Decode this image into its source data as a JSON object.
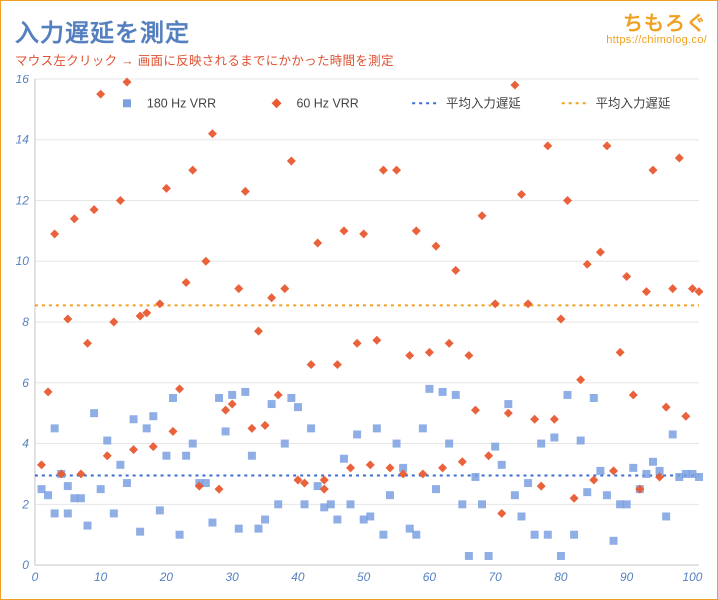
{
  "header": {
    "title": "入力遅延を測定",
    "subtitle": "マウス左クリック → 画面に反映されるまでにかかった時間を測定"
  },
  "brand": {
    "name": "ちもろぐ",
    "url": "https://chimolog.co/"
  },
  "chart": {
    "type": "scatter",
    "background_color": "#ffffff",
    "grid_color": "#e6e6e6",
    "axis_color": "#cfcfcf",
    "tick_label_color": "#5580c0",
    "tick_fontsize": 12,
    "xlim": [
      0,
      101
    ],
    "ylim": [
      0,
      16
    ],
    "xticks": [
      0,
      10,
      20,
      30,
      40,
      50,
      60,
      70,
      80,
      90,
      100
    ],
    "yticks": [
      0,
      2,
      4,
      6,
      8,
      10,
      12,
      14,
      16
    ],
    "legend": {
      "y": 15.2,
      "items": [
        {
          "key": "s180",
          "label": "180 Hz VRR",
          "marker": "square",
          "color": "#7aa0e0"
        },
        {
          "key": "s60",
          "label": "60 Hz VRR",
          "marker": "diamond",
          "color": "#e85a30"
        },
        {
          "key": "avg180",
          "label": "平均入力遅延",
          "marker": "dotted-line",
          "color": "#3a6cd0"
        },
        {
          "key": "avg60",
          "label": "平均入力遅延",
          "marker": "dotted-line",
          "color": "#f0a020"
        }
      ]
    },
    "reference_lines": [
      {
        "key": "avg60",
        "y": 8.55,
        "color": "#f0a020",
        "dash": "3,4",
        "width": 2
      },
      {
        "key": "avg180",
        "y": 2.95,
        "color": "#3a6cd0",
        "dash": "3,4",
        "width": 2
      }
    ],
    "series": [
      {
        "key": "s180",
        "marker": "square",
        "color": "#7aa0e0",
        "fill_opacity": 0.85,
        "size": 8,
        "data": [
          [
            1,
            2.5
          ],
          [
            2,
            2.3
          ],
          [
            3,
            4.5
          ],
          [
            3,
            1.7
          ],
          [
            4,
            3.0
          ],
          [
            5,
            2.6
          ],
          [
            5,
            1.7
          ],
          [
            6,
            2.2
          ],
          [
            7,
            2.2
          ],
          [
            8,
            1.3
          ],
          [
            9,
            5.0
          ],
          [
            10,
            2.5
          ],
          [
            11,
            4.1
          ],
          [
            12,
            1.7
          ],
          [
            13,
            3.3
          ],
          [
            14,
            2.7
          ],
          [
            15,
            4.8
          ],
          [
            16,
            1.1
          ],
          [
            17,
            4.5
          ],
          [
            18,
            4.9
          ],
          [
            19,
            1.8
          ],
          [
            20,
            3.6
          ],
          [
            21,
            5.5
          ],
          [
            22,
            1.0
          ],
          [
            23,
            3.6
          ],
          [
            24,
            4.0
          ],
          [
            25,
            2.7
          ],
          [
            26,
            2.7
          ],
          [
            27,
            1.4
          ],
          [
            28,
            5.5
          ],
          [
            29,
            4.4
          ],
          [
            30,
            5.6
          ],
          [
            31,
            1.2
          ],
          [
            32,
            5.7
          ],
          [
            33,
            3.6
          ],
          [
            34,
            1.2
          ],
          [
            35,
            1.5
          ],
          [
            36,
            5.3
          ],
          [
            37,
            2.0
          ],
          [
            38,
            4.0
          ],
          [
            39,
            5.5
          ],
          [
            40,
            5.2
          ],
          [
            41,
            2.0
          ],
          [
            42,
            4.5
          ],
          [
            43,
            2.6
          ],
          [
            44,
            1.9
          ],
          [
            45,
            2.0
          ],
          [
            46,
            1.5
          ],
          [
            47,
            3.5
          ],
          [
            48,
            2.0
          ],
          [
            49,
            4.3
          ],
          [
            50,
            1.5
          ],
          [
            51,
            1.6
          ],
          [
            52,
            4.5
          ],
          [
            53,
            1.0
          ],
          [
            54,
            2.3
          ],
          [
            55,
            4.0
          ],
          [
            56,
            3.2
          ],
          [
            57,
            1.2
          ],
          [
            58,
            1.0
          ],
          [
            59,
            4.5
          ],
          [
            60,
            5.8
          ],
          [
            61,
            2.5
          ],
          [
            62,
            5.7
          ],
          [
            63,
            4.0
          ],
          [
            64,
            5.6
          ],
          [
            65,
            2.0
          ],
          [
            66,
            0.3
          ],
          [
            67,
            2.9
          ],
          [
            68,
            2.0
          ],
          [
            69,
            0.3
          ],
          [
            70,
            3.9
          ],
          [
            71,
            3.3
          ],
          [
            72,
            5.3
          ],
          [
            73,
            2.3
          ],
          [
            74,
            1.6
          ],
          [
            75,
            2.7
          ],
          [
            76,
            1.0
          ],
          [
            77,
            4.0
          ],
          [
            78,
            1.0
          ],
          [
            79,
            4.2
          ],
          [
            80,
            0.3
          ],
          [
            81,
            5.6
          ],
          [
            82,
            1.0
          ],
          [
            83,
            4.1
          ],
          [
            84,
            2.4
          ],
          [
            85,
            5.5
          ],
          [
            86,
            3.1
          ],
          [
            87,
            2.3
          ],
          [
            88,
            0.8
          ],
          [
            89,
            2.0
          ],
          [
            90,
            2.0
          ],
          [
            91,
            3.2
          ],
          [
            92,
            2.5
          ],
          [
            93,
            3.0
          ],
          [
            94,
            3.4
          ],
          [
            95,
            3.1
          ],
          [
            96,
            1.6
          ],
          [
            97,
            4.3
          ],
          [
            98,
            2.9
          ],
          [
            99,
            3.0
          ],
          [
            100,
            3.0
          ],
          [
            101,
            2.9
          ]
        ]
      },
      {
        "key": "s60",
        "marker": "diamond",
        "color": "#e85a30",
        "fill_opacity": 0.95,
        "size": 9,
        "data": [
          [
            1,
            3.3
          ],
          [
            2,
            5.7
          ],
          [
            3,
            10.9
          ],
          [
            4,
            3.0
          ],
          [
            5,
            8.1
          ],
          [
            6,
            11.4
          ],
          [
            7,
            3.0
          ],
          [
            8,
            7.3
          ],
          [
            9,
            11.7
          ],
          [
            10,
            15.5
          ],
          [
            11,
            3.6
          ],
          [
            12,
            8.0
          ],
          [
            13,
            12.0
          ],
          [
            14,
            15.9
          ],
          [
            15,
            3.8
          ],
          [
            16,
            8.2
          ],
          [
            17,
            8.3
          ],
          [
            18,
            3.9
          ],
          [
            19,
            8.6
          ],
          [
            20,
            12.4
          ],
          [
            21,
            4.4
          ],
          [
            22,
            5.8
          ],
          [
            23,
            9.3
          ],
          [
            24,
            13.0
          ],
          [
            25,
            2.6
          ],
          [
            26,
            10.0
          ],
          [
            27,
            14.2
          ],
          [
            28,
            2.5
          ],
          [
            29,
            5.1
          ],
          [
            30,
            5.3
          ],
          [
            31,
            9.1
          ],
          [
            32,
            12.3
          ],
          [
            33,
            4.5
          ],
          [
            34,
            7.7
          ],
          [
            35,
            4.6
          ],
          [
            36,
            8.8
          ],
          [
            37,
            5.6
          ],
          [
            38,
            9.1
          ],
          [
            39,
            13.3
          ],
          [
            40,
            2.8
          ],
          [
            41,
            2.7
          ],
          [
            42,
            6.6
          ],
          [
            43,
            10.6
          ],
          [
            44,
            2.8
          ],
          [
            44,
            2.5
          ],
          [
            46,
            6.6
          ],
          [
            47,
            11.0
          ],
          [
            48,
            3.2
          ],
          [
            49,
            7.3
          ],
          [
            50,
            10.9
          ],
          [
            51,
            3.3
          ],
          [
            52,
            7.4
          ],
          [
            53,
            13.0
          ],
          [
            54,
            3.2
          ],
          [
            55,
            13.0
          ],
          [
            56,
            3.0
          ],
          [
            57,
            6.9
          ],
          [
            58,
            11.0
          ],
          [
            59,
            3.0
          ],
          [
            60,
            7.0
          ],
          [
            61,
            10.5
          ],
          [
            62,
            3.2
          ],
          [
            63,
            7.3
          ],
          [
            64,
            9.7
          ],
          [
            65,
            3.4
          ],
          [
            66,
            6.9
          ],
          [
            67,
            5.1
          ],
          [
            68,
            11.5
          ],
          [
            69,
            3.6
          ],
          [
            70,
            8.6
          ],
          [
            71,
            1.7
          ],
          [
            72,
            5.0
          ],
          [
            73,
            15.8
          ],
          [
            74,
            12.2
          ],
          [
            75,
            8.6
          ],
          [
            76,
            4.8
          ],
          [
            77,
            2.6
          ],
          [
            78,
            13.8
          ],
          [
            79,
            4.8
          ],
          [
            80,
            8.1
          ],
          [
            81,
            12.0
          ],
          [
            82,
            2.2
          ],
          [
            83,
            6.1
          ],
          [
            84,
            9.9
          ],
          [
            85,
            2.8
          ],
          [
            86,
            10.3
          ],
          [
            87,
            13.8
          ],
          [
            88,
            3.1
          ],
          [
            89,
            7.0
          ],
          [
            90,
            9.5
          ],
          [
            91,
            5.6
          ],
          [
            92,
            2.5
          ],
          [
            93,
            9.0
          ],
          [
            94,
            13.0
          ],
          [
            95,
            2.9
          ],
          [
            96,
            5.2
          ],
          [
            97,
            9.1
          ],
          [
            98,
            13.4
          ],
          [
            99,
            4.9
          ],
          [
            100,
            9.1
          ],
          [
            101,
            9.0
          ]
        ]
      }
    ]
  }
}
